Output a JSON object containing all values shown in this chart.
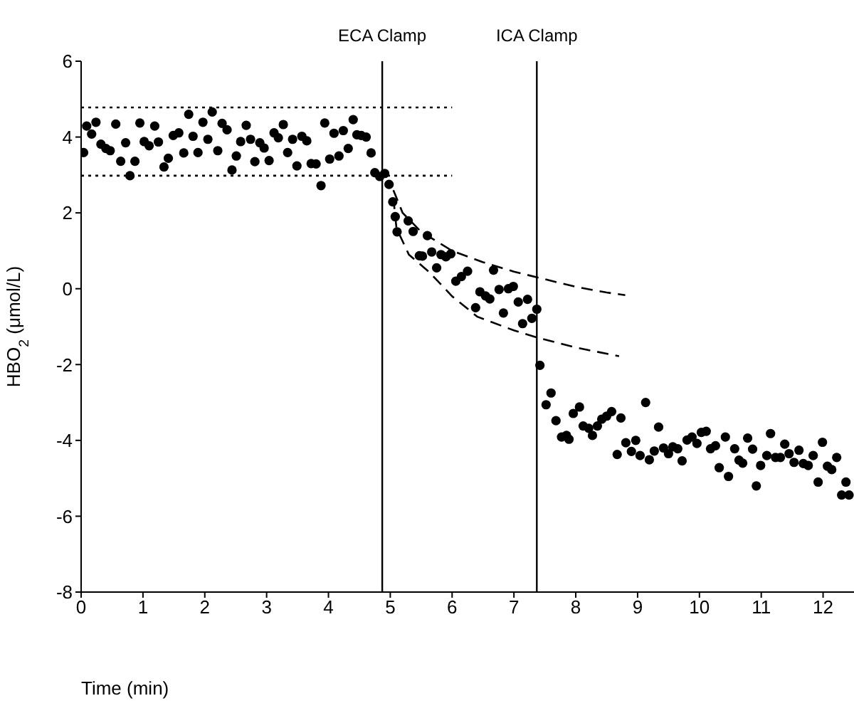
{
  "chart_data": {
    "type": "scatter",
    "xlabel": "Time (min)",
    "ylabel": "HBO$_{2}$ (μmol/L)",
    "xlim": [
      0,
      12.5
    ],
    "ylim": [
      -8,
      6
    ],
    "xticks": [
      0,
      1,
      2,
      3,
      4,
      5,
      6,
      7,
      8,
      9,
      10,
      11,
      12
    ],
    "yticks": [
      -8,
      -6,
      -4,
      -2,
      0,
      2,
      4,
      6
    ],
    "grid": false,
    "legend": false,
    "ref_lines": [
      {
        "axis": "x",
        "value": 4.87,
        "label": "ECA Clamp",
        "color": "#000000"
      },
      {
        "axis": "x",
        "value": 7.37,
        "label": "ICA Clamp",
        "color": "#000000"
      }
    ],
    "series": [
      {
        "color": "#000000",
        "marker": "circle",
        "x": [
          0.04,
          0.09,
          0.17,
          0.24,
          0.32,
          0.4,
          0.47,
          0.56,
          0.64,
          0.72,
          0.79,
          0.87,
          0.95,
          1.02,
          1.1,
          1.19,
          1.25,
          1.34,
          1.41,
          1.49,
          1.58,
          1.66,
          1.74,
          1.81,
          1.89,
          1.97,
          2.05,
          2.12,
          2.21,
          2.28,
          2.36,
          2.44,
          2.51,
          2.58,
          2.67,
          2.74,
          2.81,
          2.89,
          2.96,
          3.04,
          3.12,
          3.19,
          3.27,
          3.34,
          3.42,
          3.49,
          3.57,
          3.65,
          3.72,
          3.8,
          3.88,
          3.94,
          4.02,
          4.09,
          4.17,
          4.24,
          4.32,
          4.4,
          4.46,
          4.53,
          4.61,
          4.69,
          4.75,
          4.83,
          4.91,
          4.98,
          5.04,
          5.08,
          5.11,
          5.29,
          5.37,
          5.6,
          5.47,
          5.52,
          5.67,
          5.82,
          5.9,
          5.98,
          5.75,
          6.06,
          6.15,
          6.25,
          6.67,
          6.38,
          6.45,
          6.54,
          6.61,
          6.76,
          6.91,
          6.99,
          7.07,
          7.22,
          6.83,
          7.14,
          7.29,
          7.37,
          7.42,
          7.52,
          7.6,
          7.68,
          7.77,
          7.85,
          7.89,
          7.96,
          8.06,
          8.12,
          8.21,
          8.27,
          8.35,
          8.42,
          8.5,
          8.58,
          8.67,
          8.73,
          8.81,
          8.9,
          8.97,
          9.04,
          9.13,
          9.19,
          9.27,
          9.34,
          9.42,
          9.5,
          9.57,
          9.65,
          9.72,
          9.8,
          9.88,
          9.96,
          10.03,
          10.11,
          10.18,
          10.26,
          10.32,
          10.42,
          10.47,
          10.57,
          10.64,
          10.7,
          10.78,
          10.86,
          10.92,
          10.99,
          11.09,
          11.15,
          11.23,
          11.31,
          11.38,
          11.45,
          11.53,
          11.61,
          11.68,
          11.76,
          11.84,
          11.92,
          11.99,
          12.07,
          12.14,
          12.22,
          12.3,
          12.37,
          12.42
        ],
        "values": [
          3.59,
          4.29,
          4.08,
          4.39,
          3.81,
          3.7,
          3.64,
          4.34,
          3.36,
          3.85,
          2.98,
          3.36,
          4.37,
          3.88,
          3.77,
          4.29,
          3.87,
          3.21,
          3.44,
          4.04,
          4.11,
          3.58,
          4.6,
          4.02,
          3.59,
          4.39,
          3.94,
          4.66,
          3.64,
          4.36,
          4.19,
          3.13,
          3.5,
          3.88,
          4.31,
          3.94,
          3.35,
          3.85,
          3.71,
          3.38,
          4.11,
          3.98,
          4.33,
          3.59,
          3.94,
          3.24,
          4.02,
          3.9,
          3.3,
          3.29,
          2.72,
          4.37,
          3.42,
          4.1,
          3.5,
          4.17,
          3.7,
          4.46,
          4.06,
          4.04,
          4,
          3.58,
          3.06,
          2.96,
          3.04,
          2.75,
          2.29,
          1.9,
          1.5,
          1.79,
          1.51,
          1.4,
          0.87,
          0.86,
          0.97,
          0.9,
          0.84,
          0.92,
          0.55,
          0.2,
          0.32,
          0.46,
          0.49,
          -0.5,
          -0.08,
          -0.19,
          -0.27,
          -0.02,
          0,
          0.06,
          -0.35,
          -0.28,
          -0.64,
          -0.92,
          -0.78,
          -0.54,
          -2.02,
          -3.06,
          -2.75,
          -3.48,
          -3.91,
          -3.87,
          -3.97,
          -3.29,
          -3.12,
          -3.62,
          -3.68,
          -3.87,
          -3.62,
          -3.44,
          -3.36,
          -3.24,
          -4.37,
          -3.41,
          -4.06,
          -4.29,
          -4,
          -4.4,
          -3,
          -4.51,
          -4.28,
          -3.65,
          -4.2,
          -4.35,
          -4.17,
          -4.22,
          -4.54,
          -3.99,
          -3.91,
          -4.08,
          -3.79,
          -3.76,
          -4.22,
          -4.14,
          -4.72,
          -3.91,
          -4.95,
          -4.22,
          -4.52,
          -4.6,
          -3.94,
          -4.23,
          -5.2,
          -4.66,
          -4.4,
          -3.82,
          -4.45,
          -4.45,
          -4.1,
          -4.35,
          -4.58,
          -4.26,
          -4.61,
          -4.66,
          -4.4,
          -5.1,
          -4.05,
          -4.68,
          -4.77,
          -4.45,
          -5.44,
          -5.1,
          -5.44
        ]
      },
      {
        "type": "line",
        "color": "#000000",
        "line_style": "dotted",
        "x": [
          0,
          6
        ],
        "values": [
          4.78,
          4.78
        ]
      },
      {
        "type": "line",
        "color": "#000000",
        "line_style": "dotted",
        "x": [
          0,
          6
        ],
        "values": [
          2.98,
          2.98
        ]
      },
      {
        "type": "line",
        "color": "#000000",
        "line_style": "dashed",
        "x": [
          5.05,
          5.2,
          5.5,
          6,
          6.5,
          7,
          7.5,
          8,
          8.5,
          8.8
        ],
        "values": [
          2.6,
          2.0,
          1.5,
          1.0,
          0.7,
          0.45,
          0.25,
          0.05,
          -0.1,
          -0.17
        ]
      },
      {
        "type": "line",
        "color": "#000000",
        "line_style": "dashed",
        "x": [
          5.05,
          5.1,
          5.3,
          5.63,
          6,
          6.41,
          7,
          7.4,
          8,
          8.7
        ],
        "values": [
          2.4,
          1.6,
          0.9,
          0.44,
          -0.2,
          -0.74,
          -1.1,
          -1.3,
          -1.55,
          -1.78
        ]
      }
    ]
  }
}
